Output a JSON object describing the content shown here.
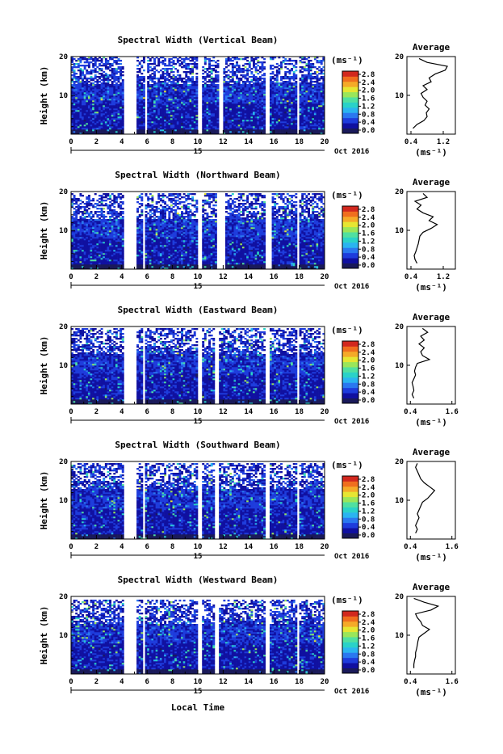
{
  "x_axis": {
    "ticks": [
      "0",
      "2",
      "4",
      "6",
      "8",
      "10",
      "12",
      "14",
      "16",
      "18",
      "20"
    ],
    "day_label": "15",
    "month_label": "Oct 2016",
    "xlabel": "Local Time"
  },
  "y_axis": {
    "label": "Height (km)",
    "ticks": [
      "10",
      "20"
    ]
  },
  "colorbar": {
    "unit": "(ms⁻¹)",
    "ticks": [
      "2.8",
      "2.4",
      "2.0",
      "1.6",
      "1.2",
      "0.8",
      "0.4",
      "0.0"
    ],
    "colors": [
      "#1a1a5a",
      "#1010a0",
      "#1e3cdc",
      "#2a78f0",
      "#2ab4f0",
      "#2ad2c8",
      "#50e0a0",
      "#9ae65a",
      "#e6e632",
      "#f5aa28",
      "#f06e1e",
      "#d2281e"
    ]
  },
  "average_panel": {
    "title": "Average",
    "xlabel": "(ms⁻¹)"
  },
  "chart_data": [
    {
      "type": "heatmap",
      "title": "Spectral Width (Vertical Beam)",
      "xlabel": "",
      "ylabel": "Height (km)",
      "xlim": [
        0,
        20
      ],
      "ylim": [
        0,
        20
      ],
      "gaps": [
        [
          4.2,
          5.2
        ],
        [
          5.8,
          6.0
        ],
        [
          10.0,
          10.3
        ],
        [
          11.6,
          12.0
        ],
        [
          15.4,
          15.7
        ],
        [
          17.8,
          18.0
        ]
      ],
      "top": 20,
      "profile": {
        "title": "Average",
        "xlabel": "(ms⁻¹)",
        "xticks": [
          "0.4",
          "1.2"
        ],
        "xlim": [
          0.3,
          1.5
        ],
        "heights": [
          1.5,
          2.5,
          3.5,
          4.5,
          5.5,
          6.5,
          7.5,
          8.5,
          9.5,
          10.5,
          11.5,
          12.5,
          13.5,
          14.5,
          15.5,
          16.5,
          17.5,
          18.5,
          19.5
        ],
        "values": [
          0.45,
          0.55,
          0.72,
          0.8,
          0.78,
          0.85,
          0.75,
          0.8,
          0.7,
          0.65,
          0.8,
          0.7,
          0.9,
          0.85,
          1.0,
          1.25,
          1.3,
          0.8,
          0.6
        ]
      }
    },
    {
      "type": "heatmap",
      "title": "Spectral Width (Northward Beam)",
      "xlabel": "",
      "ylabel": "Height (km)",
      "xlim": [
        0,
        20
      ],
      "ylim": [
        0,
        20
      ],
      "gaps": [
        [
          4.2,
          5.2
        ],
        [
          5.6,
          5.8
        ],
        [
          10.0,
          10.3
        ],
        [
          11.5,
          12.1
        ],
        [
          15.4,
          15.8
        ],
        [
          17.8,
          18.0
        ]
      ],
      "top": 19.5,
      "profile": {
        "title": "Average",
        "xlabel": "(ms⁻¹)",
        "xticks": [
          "0.4",
          "1.2"
        ],
        "xlim": [
          0.3,
          1.5
        ],
        "heights": [
          1.5,
          2.5,
          3.5,
          4.5,
          5.5,
          6.5,
          7.5,
          8.5,
          9.5,
          10.5,
          11.5,
          12.5,
          13.5,
          14.5,
          15.5,
          16.5,
          17.5,
          18.5,
          19.5
        ],
        "values": [
          0.55,
          0.5,
          0.48,
          0.52,
          0.55,
          0.58,
          0.6,
          0.62,
          0.7,
          0.9,
          1.05,
          0.85,
          0.95,
          0.7,
          0.55,
          0.65,
          0.5,
          0.8,
          0.7
        ]
      }
    },
    {
      "type": "heatmap",
      "title": "Spectral Width (Eastward Beam)",
      "xlabel": "",
      "ylabel": "Height (km)",
      "xlim": [
        0,
        20
      ],
      "ylim": [
        0,
        20
      ],
      "gaps": [
        [
          4.2,
          5.2
        ],
        [
          5.6,
          5.8
        ],
        [
          10.0,
          10.3
        ],
        [
          11.4,
          11.7
        ],
        [
          15.4,
          15.7
        ],
        [
          17.8,
          18.0
        ]
      ],
      "top": 19.5,
      "profile": {
        "title": "Average",
        "xlabel": "(ms⁻¹)",
        "xticks": [
          "0.4",
          "1.6"
        ],
        "xlim": [
          0.3,
          1.7
        ],
        "heights": [
          1.5,
          2.5,
          3.5,
          4.5,
          5.5,
          6.5,
          7.5,
          8.5,
          9.5,
          10.5,
          11.5,
          12.5,
          13.5,
          14.5,
          15.5,
          16.5,
          17.5,
          18.5,
          19.5
        ],
        "values": [
          0.5,
          0.45,
          0.5,
          0.48,
          0.45,
          0.5,
          0.55,
          0.52,
          0.55,
          0.6,
          0.95,
          0.75,
          0.7,
          0.8,
          0.65,
          0.8,
          0.7,
          0.9,
          0.75
        ]
      }
    },
    {
      "type": "heatmap",
      "title": "Spectral Width (Southward Beam)",
      "xlabel": "",
      "ylabel": "Height (km)",
      "xlim": [
        0,
        20
      ],
      "ylim": [
        0,
        20
      ],
      "gaps": [
        [
          4.2,
          5.2
        ],
        [
          5.6,
          5.8
        ],
        [
          10.0,
          10.3
        ],
        [
          11.4,
          11.7
        ],
        [
          15.4,
          15.7
        ],
        [
          17.8,
          18.0
        ]
      ],
      "top": 19.5,
      "profile": {
        "title": "Average",
        "xlabel": "(ms⁻¹)",
        "xticks": [
          "0.4",
          "1.6"
        ],
        "xlim": [
          0.3,
          1.7
        ],
        "heights": [
          1.5,
          2.5,
          3.5,
          4.5,
          5.5,
          6.5,
          7.5,
          8.5,
          9.5,
          10.5,
          11.5,
          12.5,
          13.5,
          14.5,
          15.5,
          16.5,
          17.5,
          18.5,
          19.5
        ],
        "values": [
          0.55,
          0.6,
          0.55,
          0.6,
          0.65,
          0.6,
          0.65,
          0.7,
          0.75,
          0.9,
          1.0,
          1.1,
          0.95,
          0.8,
          0.7,
          0.65,
          0.6,
          0.55,
          0.6
        ]
      }
    },
    {
      "type": "heatmap",
      "title": "Spectral Width (Westward Beam)",
      "xlabel": "",
      "ylabel": "Height (km)",
      "xlim": [
        0,
        20
      ],
      "ylim": [
        0,
        20
      ],
      "gaps": [
        [
          4.2,
          5.2
        ],
        [
          5.6,
          5.8
        ],
        [
          10.0,
          10.3
        ],
        [
          11.4,
          11.7
        ],
        [
          15.4,
          15.7
        ],
        [
          17.8,
          18.0
        ]
      ],
      "top": 19.0,
      "profile": {
        "title": "Average",
        "xlabel": "(ms⁻¹)",
        "xticks": [
          "0.4",
          "1.6"
        ],
        "xlim": [
          0.3,
          1.7
        ],
        "heights": [
          1.5,
          2.5,
          3.5,
          4.5,
          5.5,
          6.5,
          7.5,
          8.5,
          9.5,
          10.5,
          11.5,
          12.5,
          13.5,
          14.5,
          15.5,
          16.5,
          17.5,
          18.5,
          19.5
        ],
        "values": [
          0.5,
          0.5,
          0.52,
          0.55,
          0.55,
          0.58,
          0.6,
          0.62,
          0.65,
          0.8,
          0.95,
          0.75,
          0.7,
          0.6,
          0.55,
          1.0,
          1.2,
          0.8,
          0.5
        ]
      }
    }
  ]
}
